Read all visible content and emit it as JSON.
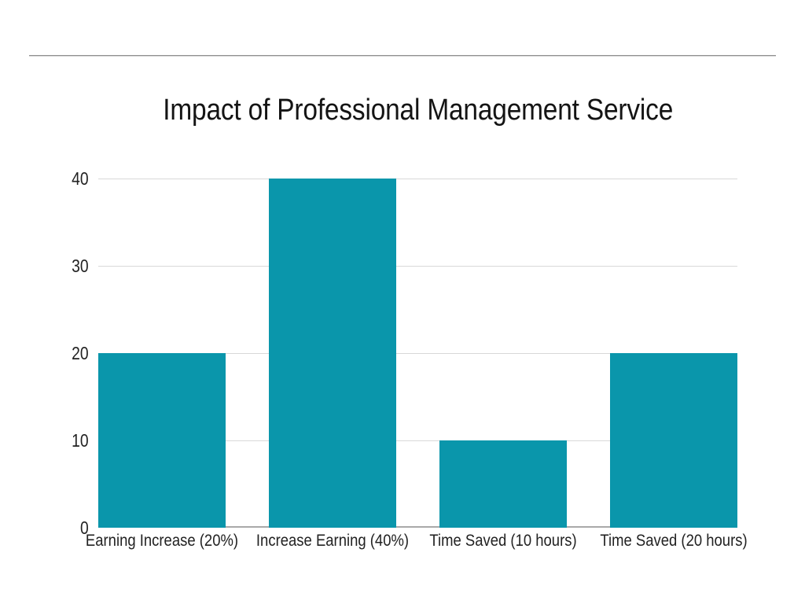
{
  "chart_data": {
    "type": "bar",
    "title": "Impact of Professional Management Service",
    "categories": [
      "Earning Increase (20%)",
      "Increase Earning (40%)",
      "Time Saved (10 hours)",
      "Time Saved (20 hours)"
    ],
    "values": [
      20,
      40,
      10,
      20
    ],
    "yticks": [
      0,
      10,
      20,
      30,
      40
    ],
    "ylim": [
      0,
      40
    ],
    "xlabel": "",
    "ylabel": "",
    "grid": true,
    "legend_position": "none",
    "bar_color": "#0a96ab",
    "gridline_color": "#d8d8d8",
    "axis_line_color": "#a9a9a9",
    "divider_color": "#8f8f8f"
  }
}
